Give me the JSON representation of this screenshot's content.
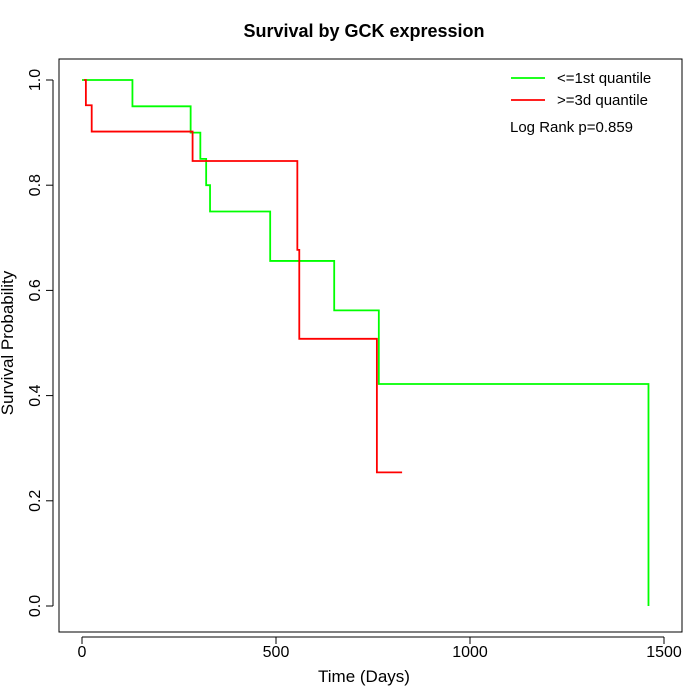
{
  "chart_data": {
    "type": "line",
    "title": "Survival by GCK expression",
    "xlabel": "Time (Days)",
    "ylabel": "Survival Probability",
    "xlim": [
      0,
      1500
    ],
    "ylim": [
      0,
      1
    ],
    "x_ticks": [
      0,
      500,
      1000,
      1500
    ],
    "x_tick_labels": [
      "0",
      "500",
      "1000",
      "1500"
    ],
    "y_ticks": [
      0.0,
      0.2,
      0.4,
      0.6,
      0.8,
      1.0
    ],
    "y_tick_labels": [
      "0.0",
      "0.2",
      "0.4",
      "0.6",
      "0.8",
      "1.0"
    ],
    "grid": false,
    "legend_position": "top-right",
    "annotation": "Log Rank p=0.859",
    "series": [
      {
        "name": "<=1st quantile",
        "color": "#00ff00",
        "step_x": [
          0,
          130,
          280,
          305,
          320,
          330,
          485,
          650,
          765,
          1460
        ],
        "step_y": [
          1.0,
          0.95,
          0.9,
          0.85,
          0.8,
          0.75,
          0.656,
          0.562,
          0.422,
          0.0
        ]
      },
      {
        "name": ">=3d quantile",
        "color": "#ff0000",
        "step_x": [
          5,
          10,
          25,
          285,
          555,
          560,
          760
        ],
        "step_y": [
          1.0,
          0.952,
          0.902,
          0.846,
          0.677,
          0.508,
          0.254
        ],
        "end_x": 825
      }
    ]
  }
}
